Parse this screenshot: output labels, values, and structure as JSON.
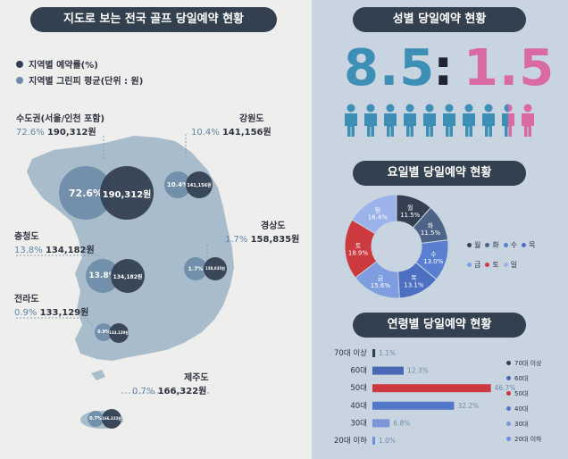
{
  "left": {
    "title": "지도로 보는 전국 골프 당일예약 현황",
    "legend": [
      {
        "label": "지역별 예약률(%)",
        "color": "#344052"
      },
      {
        "label": "지역별 그린피 평균(단위 : 원)",
        "color": "#6e8ca8"
      }
    ],
    "regions": [
      {
        "id": "capital",
        "name": "수도권(서울/인천 포함)",
        "pct": "72.6%",
        "won": "190,312원",
        "bubble_pct": "72.6%",
        "bubble_won": "190,312원"
      },
      {
        "id": "gangwon",
        "name": "강원도",
        "pct": "10.4%",
        "won": "141,156원",
        "bubble_pct": "10.4%",
        "bubble_won": "141,156원"
      },
      {
        "id": "chungcheong",
        "name": "충청도",
        "pct": "13.8%",
        "won": "134,182원",
        "bubble_pct": "13.8%",
        "bubble_won": "134,182원"
      },
      {
        "id": "gyeongsang",
        "name": "경상도",
        "pct": "1.7%",
        "won": "158,835원",
        "bubble_pct": "1.7%",
        "bubble_won": "158,835원"
      },
      {
        "id": "jeolla",
        "name": "전라도",
        "pct": "0.9%",
        "won": "133,129원",
        "bubble_pct": "0.9%",
        "bubble_won": "133,129원"
      },
      {
        "id": "jeju",
        "name": "제주도",
        "pct": "0.7%",
        "won": "166,322원",
        "bubble_pct": "0.7%",
        "bubble_won": "166,322원"
      }
    ]
  },
  "gender": {
    "title": "성별 당일예약 현황",
    "male": "8.5",
    "separator": ":",
    "female": "1.5",
    "male_color": "#3d8fb5",
    "female_color": "#d96aa4"
  },
  "weekday": {
    "title": "요일별 당일예약 현황"
  },
  "age": {
    "title": "연령별 당일예약 현황"
  },
  "chart_data": [
    {
      "type": "pie",
      "title": "요일별 당일예약 현황",
      "categories": [
        "월",
        "화",
        "수",
        "목",
        "금",
        "토",
        "일"
      ],
      "values": [
        11.5,
        11.5,
        13.0,
        13.1,
        15.6,
        18.9,
        16.4
      ],
      "labels": [
        "11.5%",
        "11.5%",
        "13.0%",
        "13.1%",
        "15.6%",
        "18.9%",
        "16.4%"
      ],
      "colors": [
        "#344052",
        "#4e6487",
        "#5a7fd0",
        "#4c6fc2",
        "#7f9ee0",
        "#cc3a40",
        "#9bb3ea"
      ],
      "legend_placement": "right"
    },
    {
      "type": "bar",
      "title": "연령별 당일예약 현황",
      "categories": [
        "70대 이상",
        "60대",
        "50대",
        "40대",
        "30대",
        "20대 이하"
      ],
      "values": [
        1.1,
        12.3,
        46.7,
        32.2,
        6.8,
        1.0
      ],
      "labels": [
        "1.1%",
        "12.3%",
        "46.7%",
        "32.2%",
        "6.8%",
        "1.0%"
      ],
      "colors": [
        "#344052",
        "#4a67b4",
        "#cc3a40",
        "#5478c8",
        "#7b95d6",
        "#6f8fe0"
      ],
      "xlim": [
        0,
        50
      ],
      "legend_placement": "right"
    }
  ]
}
